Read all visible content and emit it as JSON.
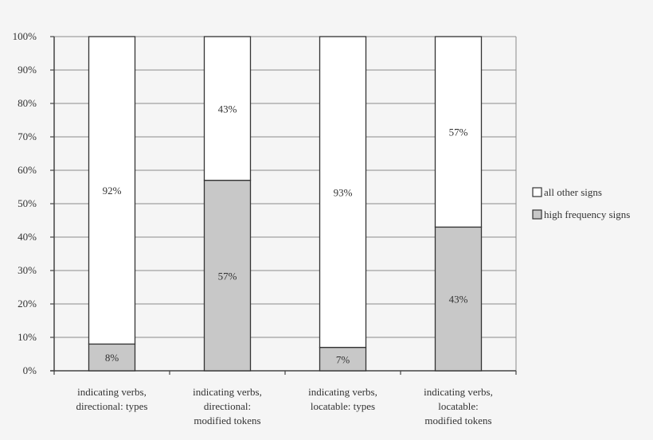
{
  "chart_data": {
    "type": "bar",
    "stacked": true,
    "categories": [
      [
        "indicating verbs,",
        "directional: types"
      ],
      [
        "indicating verbs,",
        "directional:",
        "modified tokens"
      ],
      [
        "indicating verbs,",
        "locatable: types"
      ],
      [
        "indicating verbs,",
        "locatable:",
        "modified tokens"
      ]
    ],
    "series": [
      {
        "name": "high frequency signs",
        "values": [
          8,
          57,
          7,
          43
        ],
        "labels": [
          "8%",
          "57%",
          "7%",
          "43%"
        ],
        "color": "#c8c8c8"
      },
      {
        "name": "all other signs",
        "values": [
          92,
          43,
          93,
          57
        ],
        "labels": [
          "92%",
          "43%",
          "93%",
          "57%"
        ],
        "color": "#ffffff"
      }
    ],
    "ylim": [
      0,
      100
    ],
    "yticks": [
      "0%",
      "10%",
      "20%",
      "30%",
      "40%",
      "50%",
      "60%",
      "70%",
      "80%",
      "90%",
      "100%"
    ],
    "grid": true,
    "legend": {
      "placement": "right",
      "entries": [
        "all other signs",
        "high frequency signs"
      ]
    }
  }
}
